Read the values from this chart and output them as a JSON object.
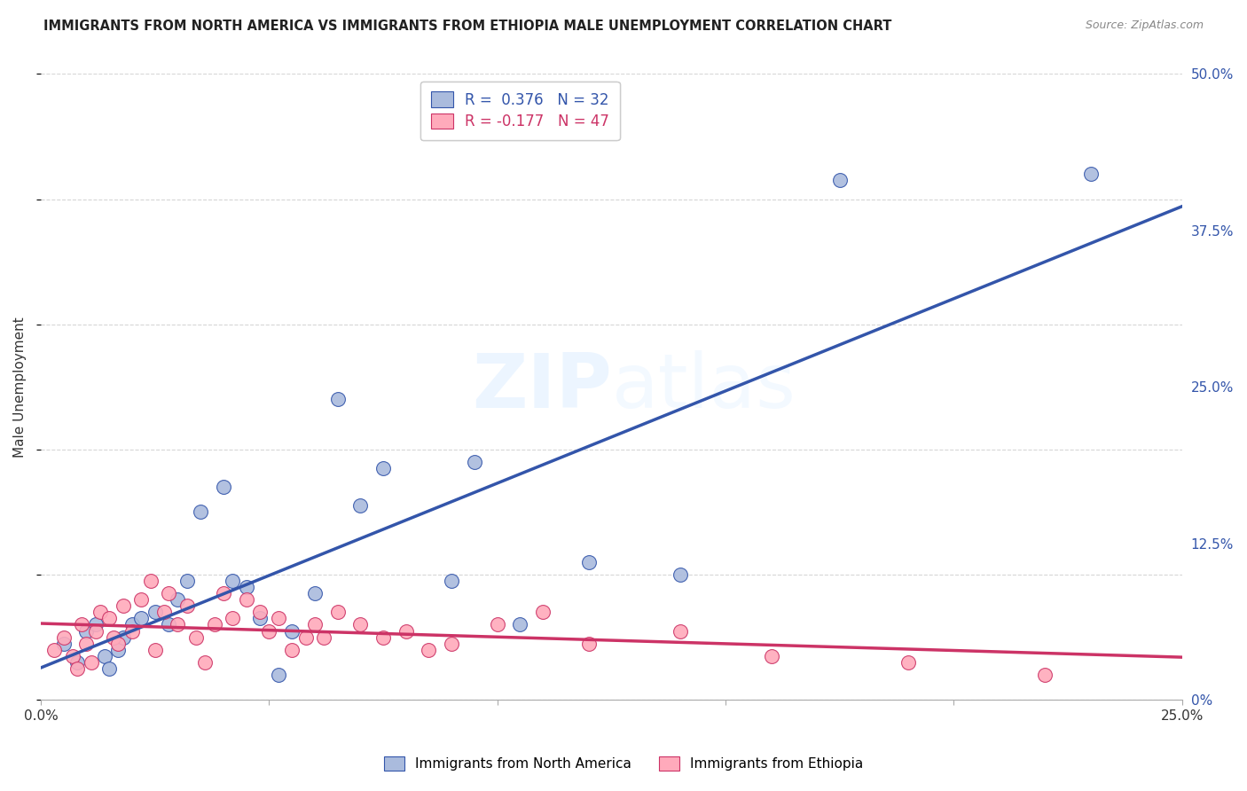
{
  "title": "IMMIGRANTS FROM NORTH AMERICA VS IMMIGRANTS FROM ETHIOPIA MALE UNEMPLOYMENT CORRELATION CHART",
  "source": "Source: ZipAtlas.com",
  "ylabel": "Male Unemployment",
  "legend_label1": "Immigrants from North America",
  "legend_label2": "Immigrants from Ethiopia",
  "R1": 0.376,
  "N1": 32,
  "R2": -0.177,
  "N2": 47,
  "xlim": [
    0.0,
    0.25
  ],
  "ylim": [
    0.0,
    0.5
  ],
  "xticks": [
    0.0,
    0.05,
    0.1,
    0.15,
    0.2,
    0.25
  ],
  "yticks": [
    0.0,
    0.125,
    0.25,
    0.375,
    0.5
  ],
  "ytick_labels_right": [
    "0%",
    "12.5%",
    "25.0%",
    "37.5%",
    "50.0%"
  ],
  "color_blue": "#AABBDD",
  "color_blue_line": "#3355AA",
  "color_pink": "#FFAABB",
  "color_pink_line": "#CC3366",
  "background_color": "#FFFFFF",
  "watermark_zip": "ZIP",
  "watermark_atlas": "atlas",
  "blue_x": [
    0.005,
    0.008,
    0.01,
    0.012,
    0.014,
    0.015,
    0.017,
    0.018,
    0.02,
    0.022,
    0.025,
    0.028,
    0.03,
    0.032,
    0.035,
    0.04,
    0.042,
    0.045,
    0.048,
    0.052,
    0.055,
    0.06,
    0.065,
    0.07,
    0.075,
    0.09,
    0.095,
    0.105,
    0.12,
    0.14,
    0.175,
    0.23
  ],
  "blue_y": [
    0.045,
    0.03,
    0.055,
    0.06,
    0.035,
    0.025,
    0.04,
    0.05,
    0.06,
    0.065,
    0.07,
    0.06,
    0.08,
    0.095,
    0.15,
    0.17,
    0.095,
    0.09,
    0.065,
    0.02,
    0.055,
    0.085,
    0.24,
    0.155,
    0.185,
    0.095,
    0.19,
    0.06,
    0.11,
    0.1,
    0.415,
    0.42
  ],
  "pink_x": [
    0.003,
    0.005,
    0.007,
    0.008,
    0.009,
    0.01,
    0.011,
    0.012,
    0.013,
    0.015,
    0.016,
    0.017,
    0.018,
    0.02,
    0.022,
    0.024,
    0.025,
    0.027,
    0.028,
    0.03,
    0.032,
    0.034,
    0.036,
    0.038,
    0.04,
    0.042,
    0.045,
    0.048,
    0.05,
    0.052,
    0.055,
    0.058,
    0.06,
    0.062,
    0.065,
    0.07,
    0.075,
    0.08,
    0.085,
    0.09,
    0.1,
    0.11,
    0.12,
    0.14,
    0.16,
    0.19,
    0.22
  ],
  "pink_y": [
    0.04,
    0.05,
    0.035,
    0.025,
    0.06,
    0.045,
    0.03,
    0.055,
    0.07,
    0.065,
    0.05,
    0.045,
    0.075,
    0.055,
    0.08,
    0.095,
    0.04,
    0.07,
    0.085,
    0.06,
    0.075,
    0.05,
    0.03,
    0.06,
    0.085,
    0.065,
    0.08,
    0.07,
    0.055,
    0.065,
    0.04,
    0.05,
    0.06,
    0.05,
    0.07,
    0.06,
    0.05,
    0.055,
    0.04,
    0.045,
    0.06,
    0.07,
    0.045,
    0.055,
    0.035,
    0.03,
    0.02
  ]
}
